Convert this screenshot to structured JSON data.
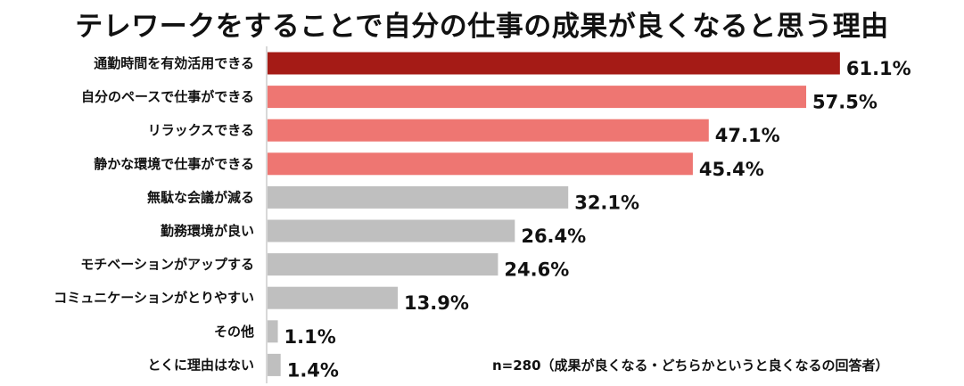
{
  "title": "テレワークをすることで自分の仕事の成果が良くなると思う理由",
  "note": "n=280（成果が良くなる・どちらかというと良くなるの回答者）",
  "colors": {
    "top": "#a51b16",
    "highlight": "#ee7672",
    "other": "#bfbfbf",
    "text": "#111111",
    "axis": "#b0b0b0"
  },
  "chart_data": {
    "type": "bar",
    "orientation": "horizontal",
    "categories": [
      "通勤時間を有効活用できる",
      "自分のペースで仕事ができる",
      "リラックスできる",
      "静かな環境で仕事ができる",
      "無駄な会議が減る",
      "勤務環境が良い",
      "モチベーションがアップする",
      "コミュニケーションがとりやすい",
      "その他",
      "とくに理由はない"
    ],
    "values": [
      61.1,
      57.5,
      47.1,
      45.4,
      32.1,
      26.4,
      24.6,
      13.9,
      1.1,
      1.4
    ],
    "value_labels": [
      "61.1%",
      "57.5%",
      "47.1%",
      "45.4%",
      "32.1%",
      "26.4%",
      "24.6%",
      "13.9%",
      "1.1%",
      "1.4%"
    ],
    "bar_color_groups": [
      "top",
      "highlight",
      "highlight",
      "highlight",
      "other",
      "other",
      "other",
      "other",
      "other",
      "other"
    ],
    "xlim": [
      0,
      65
    ],
    "title": "テレワークをすることで自分の仕事の成果が良くなると思う理由",
    "xlabel": "",
    "ylabel": "",
    "grid": false,
    "legend": "none"
  }
}
